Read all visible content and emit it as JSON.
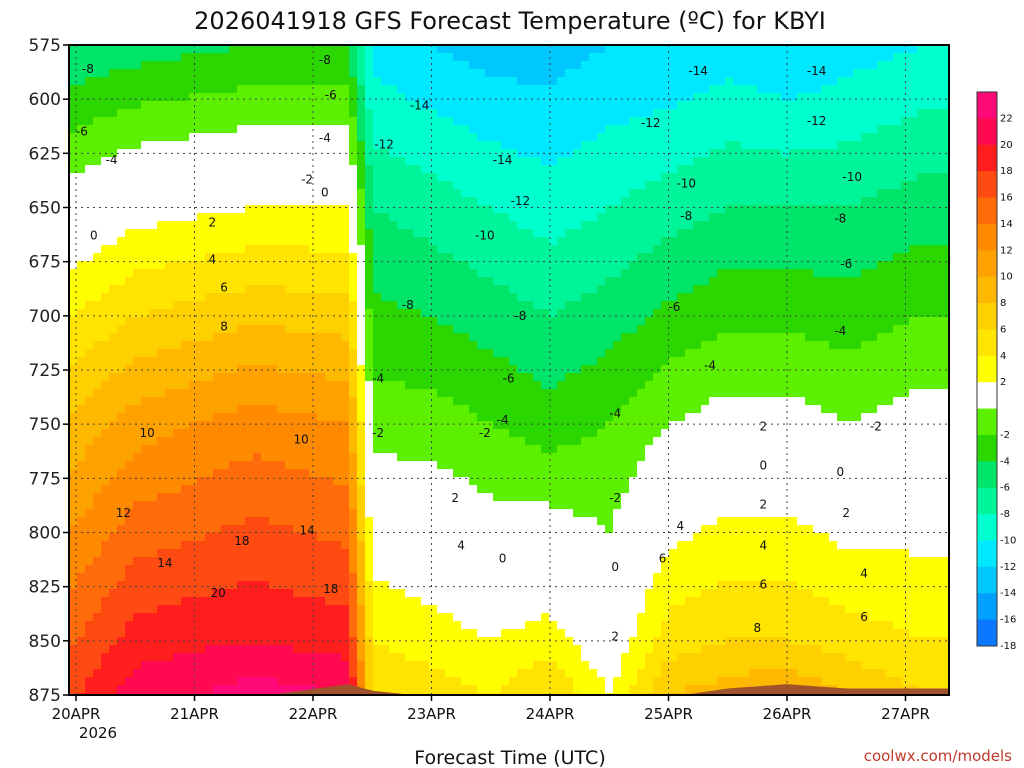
{
  "chart_data": {
    "type": "heatmap",
    "title": "2026041918 GFS Forecast Temperature (ºC) for KBYI",
    "xlabel": "Forecast Time (UTC)",
    "ylabel": "Pressure (hPa)",
    "x_ticks": [
      "20APR",
      "21APR",
      "22APR",
      "23APR",
      "24APR",
      "25APR",
      "26APR",
      "27APR"
    ],
    "x_year": "2026",
    "y_ticks": [
      575,
      600,
      625,
      650,
      675,
      700,
      725,
      750,
      775,
      800,
      825,
      850,
      875
    ],
    "ylim": [
      875,
      575
    ],
    "xlim_days": [
      -0.15,
      7.15
    ],
    "colorbar_ticks": [
      22,
      20,
      18,
      16,
      14,
      12,
      10,
      8,
      6,
      4,
      2,
      -2,
      -4,
      -6,
      -8,
      -10,
      -12,
      -14,
      -16,
      -18
    ],
    "color_levels": [
      {
        "min": 22,
        "color": "#ff0a78"
      },
      {
        "min": 20,
        "color": "#ff0a50"
      },
      {
        "min": 18,
        "color": "#ff1e1e"
      },
      {
        "min": 16,
        "color": "#ff4a12"
      },
      {
        "min": 14,
        "color": "#ff6a0a"
      },
      {
        "min": 12,
        "color": "#ff8a00"
      },
      {
        "min": 10,
        "color": "#ffa200"
      },
      {
        "min": 8,
        "color": "#ffb800"
      },
      {
        "min": 6,
        "color": "#ffd000"
      },
      {
        "min": 4,
        "color": "#ffe400"
      },
      {
        "min": 2,
        "color": "#ffff00"
      },
      {
        "min": -2,
        "color": "#ffffff"
      },
      {
        "min": -4,
        "color": "#5cf000"
      },
      {
        "min": -6,
        "color": "#2ad700"
      },
      {
        "min": -8,
        "color": "#00e46a"
      },
      {
        "min": -10,
        "color": "#00f59a"
      },
      {
        "min": -12,
        "color": "#00ffcf"
      },
      {
        "min": -14,
        "color": "#00e8ff"
      },
      {
        "min": -16,
        "color": "#00c8ff"
      },
      {
        "min": -18,
        "color": "#00a0ff"
      },
      {
        "min": -99,
        "color": "#0a78ff"
      }
    ],
    "terrain_color": "#a0522d",
    "profile_columns_x_days": [
      -0.15,
      0.5,
      1.5,
      2.3,
      2.5,
      3.0,
      3.5,
      4.0,
      4.5,
      5.0,
      5.5,
      6.0,
      6.5,
      7.15
    ],
    "profile_levels_hpa": [
      575,
      650,
      750,
      850,
      875
    ],
    "temperature_profiles": [
      [
        -8,
        -1,
        8,
        15,
        17
      ],
      [
        -7,
        1,
        11,
        19,
        21
      ],
      [
        -6,
        2,
        13,
        20,
        23
      ],
      [
        -6,
        2,
        12,
        19,
        22
      ],
      [
        -13,
        -8,
        -3,
        4,
        6
      ],
      [
        -14,
        -9,
        -3,
        3,
        5
      ],
      [
        -15,
        -10,
        -4,
        2,
        4
      ],
      [
        -15,
        -11,
        -5,
        3,
        6
      ],
      [
        -14,
        -10,
        -4,
        0,
        2
      ],
      [
        -14,
        -9,
        -2,
        5,
        8
      ],
      [
        -13,
        -8,
        -1,
        6,
        9
      ],
      [
        -14,
        -8,
        -1,
        6,
        10
      ],
      [
        -13,
        -8,
        -2,
        5,
        8
      ],
      [
        -12,
        -7,
        -1,
        4,
        6
      ]
    ],
    "terrain_top_hpa_by_column": [
      878,
      877,
      876,
      870,
      873,
      876,
      877,
      876,
      877,
      876,
      872,
      870,
      872,
      872
    ],
    "contour_labels": [
      {
        "label": "-8",
        "x": 0.1,
        "p": 586
      },
      {
        "label": "-6",
        "x": 0.05,
        "p": 615
      },
      {
        "label": "-4",
        "x": 0.3,
        "p": 628
      },
      {
        "label": "-2",
        "x": -0.1,
        "p": 646
      },
      {
        "label": "0",
        "x": 0.15,
        "p": 663
      },
      {
        "label": "2",
        "x": 1.15,
        "p": 657
      },
      {
        "label": "4",
        "x": 1.15,
        "p": 674
      },
      {
        "label": "6",
        "x": 1.25,
        "p": 687
      },
      {
        "label": "8",
        "x": 1.25,
        "p": 705
      },
      {
        "label": "10",
        "x": 0.6,
        "p": 754
      },
      {
        "label": "12",
        "x": 0.4,
        "p": 791
      },
      {
        "label": "14",
        "x": 0.75,
        "p": 814
      },
      {
        "label": "18",
        "x": 1.4,
        "p": 804
      },
      {
        "label": "20",
        "x": 1.2,
        "p": 828
      },
      {
        "label": "10",
        "x": 1.9,
        "p": 757
      },
      {
        "label": "14",
        "x": 1.95,
        "p": 799
      },
      {
        "label": "18",
        "x": 2.15,
        "p": 826
      },
      {
        "label": "-8",
        "x": 2.1,
        "p": 582
      },
      {
        "label": "-6",
        "x": 2.15,
        "p": 598
      },
      {
        "label": "-4",
        "x": 2.1,
        "p": 618
      },
      {
        "label": "-2",
        "x": 1.95,
        "p": 637
      },
      {
        "label": "0",
        "x": 2.1,
        "p": 643
      },
      {
        "label": "-14",
        "x": 2.9,
        "p": 603
      },
      {
        "label": "-12",
        "x": 2.6,
        "p": 621
      },
      {
        "label": "-14",
        "x": 3.6,
        "p": 628
      },
      {
        "label": "-12",
        "x": 3.75,
        "p": 647
      },
      {
        "label": "-10",
        "x": 3.45,
        "p": 663
      },
      {
        "label": "-8",
        "x": 2.8,
        "p": 695
      },
      {
        "label": "-8",
        "x": 3.75,
        "p": 700
      },
      {
        "label": "-6",
        "x": 3.65,
        "p": 729
      },
      {
        "label": "-4",
        "x": 2.55,
        "p": 729
      },
      {
        "label": "-4",
        "x": 3.6,
        "p": 748
      },
      {
        "label": "-2",
        "x": 2.55,
        "p": 754
      },
      {
        "label": "-2",
        "x": 3.45,
        "p": 754
      },
      {
        "label": "2",
        "x": 3.2,
        "p": 784
      },
      {
        "label": "4",
        "x": 3.25,
        "p": 806
      },
      {
        "label": "0",
        "x": 3.6,
        "p": 812
      },
      {
        "label": "-14",
        "x": 5.25,
        "p": 587
      },
      {
        "label": "-12",
        "x": 4.85,
        "p": 611
      },
      {
        "label": "-10",
        "x": 5.15,
        "p": 639
      },
      {
        "label": "-8",
        "x": 5.15,
        "p": 654
      },
      {
        "label": "-6",
        "x": 5.05,
        "p": 696
      },
      {
        "label": "-4",
        "x": 4.55,
        "p": 745
      },
      {
        "label": "-4",
        "x": 5.35,
        "p": 723
      },
      {
        "label": "-2",
        "x": 4.55,
        "p": 784
      },
      {
        "label": "0",
        "x": 4.55,
        "p": 816
      },
      {
        "label": "2",
        "x": 4.55,
        "p": 848
      },
      {
        "label": "4",
        "x": 5.1,
        "p": 797
      },
      {
        "label": "6",
        "x": 4.95,
        "p": 812
      },
      {
        "label": "-14",
        "x": 6.25,
        "p": 587
      },
      {
        "label": "-12",
        "x": 6.25,
        "p": 610
      },
      {
        "label": "-10",
        "x": 6.55,
        "p": 636
      },
      {
        "label": "-8",
        "x": 6.45,
        "p": 655
      },
      {
        "label": "-6",
        "x": 6.5,
        "p": 676
      },
      {
        "label": "-4",
        "x": 6.45,
        "p": 707
      },
      {
        "label": "-2",
        "x": 6.75,
        "p": 751
      },
      {
        "label": "2",
        "x": 5.8,
        "p": 751
      },
      {
        "label": "0",
        "x": 5.8,
        "p": 769
      },
      {
        "label": "0",
        "x": 6.45,
        "p": 772
      },
      {
        "label": "2",
        "x": 5.8,
        "p": 787
      },
      {
        "label": "2",
        "x": 6.5,
        "p": 791
      },
      {
        "label": "4",
        "x": 5.8,
        "p": 806
      },
      {
        "label": "4",
        "x": 6.65,
        "p": 819
      },
      {
        "label": "6",
        "x": 5.8,
        "p": 824
      },
      {
        "label": "6",
        "x": 6.65,
        "p": 839
      },
      {
        "label": "8",
        "x": 5.75,
        "p": 844
      }
    ]
  },
  "credit": "coolwx.com/models"
}
